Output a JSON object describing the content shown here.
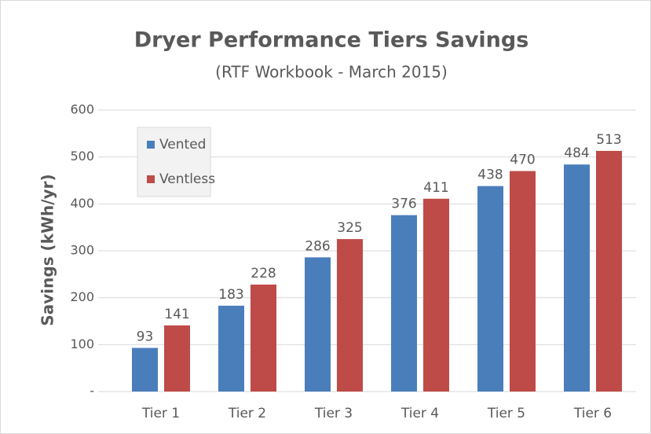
{
  "chart_data": {
    "type": "bar",
    "title": "Dryer Performance Tiers Savings",
    "subtitle": "(RTF Workbook - March 2015)",
    "y_label": "Savings (kWh/yr)",
    "categories": [
      "Tier 1",
      "Tier 2",
      "Tier 3",
      "Tier 4",
      "Tier 5",
      "Tier 6"
    ],
    "series": [
      {
        "name": "Vented",
        "color": "#4a7ebb",
        "values": [
          93,
          183,
          286,
          376,
          438,
          484
        ]
      },
      {
        "name": "Ventless",
        "color": "#be4b48",
        "values": [
          141,
          228,
          325,
          411,
          470,
          513
        ]
      }
    ],
    "ylim": [
      0,
      600
    ],
    "yticks": [
      {
        "value": 0,
        "label": "-"
      },
      100,
      200,
      300,
      400,
      500,
      600
    ],
    "grid": true,
    "legend": "top-left"
  }
}
